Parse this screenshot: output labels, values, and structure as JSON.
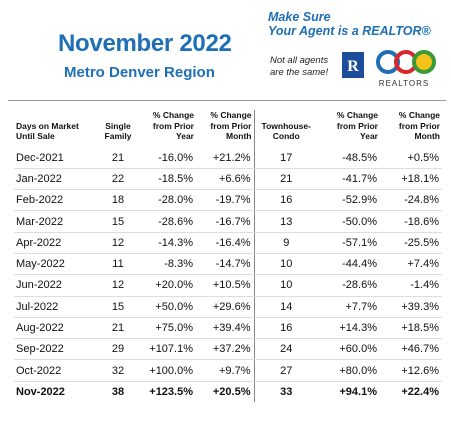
{
  "header": {
    "title": "November 2022",
    "subtitle": "Metro Denver Region"
  },
  "promo": {
    "tagline_line1": "Make Sure",
    "tagline_line2": "Your Agent is a REALTOR®",
    "note_line1": "Not all agents",
    "note_line2": "are the same!",
    "realtor_mark": "R",
    "association": "REALTORS"
  },
  "table": {
    "columns": [
      "Days on Market Until Sale",
      "Single Family",
      "% Change from Prior Year",
      "% Change from Prior Month",
      "Townhouse-Condo",
      "% Change from Prior Year",
      "% Change from Prior Month"
    ],
    "rows": [
      [
        "Dec-2021",
        "21",
        "-16.0%",
        "+21.2%",
        "17",
        "-48.5%",
        "+0.5%"
      ],
      [
        "Jan-2022",
        "22",
        "-18.5%",
        "+6.6%",
        "21",
        "-41.7%",
        "+18.1%"
      ],
      [
        "Feb-2022",
        "18",
        "-28.0%",
        "-19.7%",
        "16",
        "-52.9%",
        "-24.8%"
      ],
      [
        "Mar-2022",
        "15",
        "-28.6%",
        "-16.7%",
        "13",
        "-50.0%",
        "-18.6%"
      ],
      [
        "Apr-2022",
        "12",
        "-14.3%",
        "-16.4%",
        "9",
        "-57.1%",
        "-25.5%"
      ],
      [
        "May-2022",
        "11",
        "-8.3%",
        "-14.7%",
        "10",
        "-44.4%",
        "+7.4%"
      ],
      [
        "Jun-2022",
        "12",
        "+20.0%",
        "+10.5%",
        "10",
        "-28.6%",
        "-1.4%"
      ],
      [
        "Jul-2022",
        "15",
        "+50.0%",
        "+29.6%",
        "14",
        "+7.7%",
        "+39.3%"
      ],
      [
        "Aug-2022",
        "21",
        "+75.0%",
        "+39.4%",
        "16",
        "+14.3%",
        "+18.5%"
      ],
      [
        "Sep-2022",
        "29",
        "+107.1%",
        "+37.2%",
        "24",
        "+60.0%",
        "+46.7%"
      ],
      [
        "Oct-2022",
        "32",
        "+100.0%",
        "+9.7%",
        "27",
        "+80.0%",
        "+12.6%"
      ],
      [
        "Nov-2022",
        "38",
        "+123.5%",
        "+20.5%",
        "33",
        "+94.1%",
        "+22.4%"
      ]
    ]
  }
}
